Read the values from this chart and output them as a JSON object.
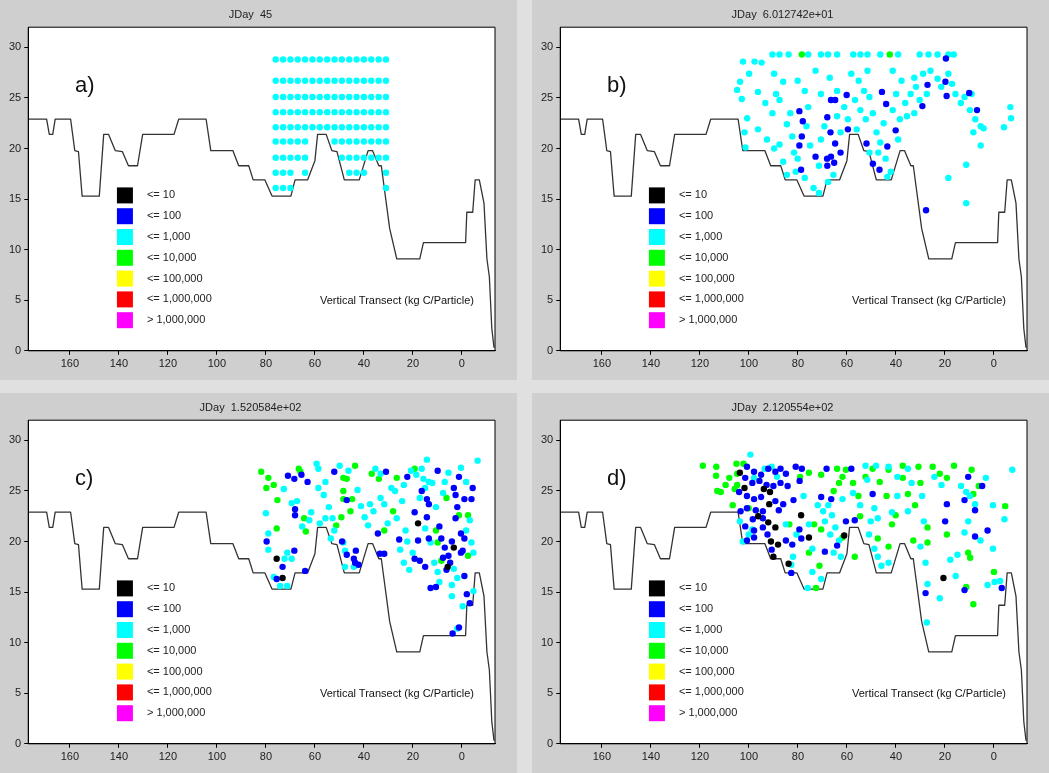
{
  "chart_data": [
    {
      "type": "scatter",
      "title": "JDay  45",
      "annotations": [
        "a)",
        "Vertical Transect (kg C/Particle)"
      ],
      "xlim": [
        177,
        -13.5
      ],
      "xticks": [
        160,
        140,
        120,
        100,
        80,
        60,
        40,
        20,
        0
      ],
      "ylim": [
        0,
        32
      ],
      "yticks": [
        0,
        5,
        10,
        15,
        20,
        25,
        30
      ],
      "legend": "bottom left",
      "marker": "circle",
      "series": [
        {
          "name": "<= 10",
          "color": "#000000"
        },
        {
          "name": "<= 100",
          "color": "#0000ff"
        },
        {
          "name": "<= 1,000",
          "color": "#00ffff",
          "x": [
            76,
            73,
            70,
            67,
            64,
            61,
            58,
            55,
            52,
            49,
            46,
            43,
            40,
            37,
            34,
            31,
            76,
            73,
            70,
            67,
            64,
            61,
            58,
            55,
            52,
            49,
            46,
            43,
            40,
            37,
            34,
            31,
            76,
            73,
            70,
            67,
            64,
            61,
            58,
            55,
            52,
            49,
            46,
            43,
            40,
            37,
            34,
            31,
            76,
            73,
            70,
            67,
            64,
            61,
            58,
            55,
            52,
            49,
            46,
            43,
            40,
            37,
            34,
            31,
            76,
            73,
            70,
            67,
            64,
            61,
            58,
            55,
            52,
            49,
            46,
            43,
            40,
            37,
            34,
            31,
            76,
            73,
            70,
            67,
            64,
            52,
            49,
            46,
            43,
            40,
            37,
            34,
            31,
            76,
            73,
            70,
            67,
            64,
            49,
            46,
            43,
            40,
            37,
            34,
            31,
            76,
            73,
            70,
            64,
            46,
            43,
            40,
            31,
            76,
            73,
            70,
            31
          ],
          "values": [
            28.8,
            28.8,
            28.8,
            28.8,
            28.8,
            28.8,
            28.8,
            28.8,
            28.8,
            28.8,
            28.8,
            28.8,
            28.8,
            28.8,
            28.8,
            28.8,
            26.7,
            26.7,
            26.7,
            26.7,
            26.7,
            26.7,
            26.7,
            26.7,
            26.7,
            26.7,
            26.7,
            26.7,
            26.7,
            26.7,
            26.7,
            26.7,
            25.1,
            25.1,
            25.1,
            25.1,
            25.1,
            25.1,
            25.1,
            25.1,
            25.1,
            25.1,
            25.1,
            25.1,
            25.1,
            25.1,
            25.1,
            25.1,
            23.6,
            23.6,
            23.6,
            23.6,
            23.6,
            23.6,
            23.6,
            23.6,
            23.6,
            23.6,
            23.6,
            23.6,
            23.6,
            23.6,
            23.6,
            23.6,
            22.1,
            22.1,
            22.1,
            22.1,
            22.1,
            22.1,
            22.1,
            22.1,
            22.1,
            22.1,
            22.1,
            22.1,
            22.1,
            22.1,
            22.1,
            22.1,
            20.7,
            20.7,
            20.7,
            20.7,
            20.7,
            20.7,
            20.7,
            20.7,
            20.7,
            20.7,
            20.7,
            20.7,
            20.7,
            19.1,
            19.1,
            19.1,
            19.1,
            19.1,
            19.1,
            19.1,
            19.1,
            19.1,
            19.1,
            19.1,
            19.1,
            17.6,
            17.6,
            17.6,
            17.6,
            17.6,
            17.6,
            17.6,
            17.6,
            16.1,
            16.1,
            16.1,
            16.1
          ]
        },
        {
          "name": "<= 10,000",
          "color": "#00ff00"
        },
        {
          "name": "<= 100,000",
          "color": "#ffff00"
        },
        {
          "name": "<= 1,000,000",
          "color": "#ff0000"
        },
        {
          "name": "> 1,000,000",
          "color": "#ff00ff"
        },
        {
          "type": "line",
          "marker": "none",
          "color": "#333333",
          "x": [
            176.7,
            169.5,
            168.4,
            167,
            166,
            159.7,
            158,
            156.5,
            155,
            148,
            146.2,
            144.2,
            141.5,
            138.6,
            136.1,
            132.4,
            130.3,
            117.5,
            115.6,
            104.4,
            102.5,
            93.5,
            91.1,
            87,
            85.2,
            80.4,
            77.5,
            69.8,
            68.1,
            63,
            60,
            58.9,
            55.4,
            53.1,
            51,
            48,
            41.9,
            38.3,
            36.5,
            33.9,
            32.9,
            29.5,
            26.6,
            17.2,
            15.7,
            -1.5,
            -2,
            -4.4,
            -5.4,
            -7.1,
            -9,
            -10.2,
            -11.2,
            -12.2,
            -13.1
          ],
          "values": [
            22.9,
            22.9,
            21.4,
            21.4,
            22.9,
            22.9,
            19.8,
            19.7,
            15.3,
            15.3,
            21.4,
            21.4,
            19.8,
            19.7,
            18.3,
            18.3,
            21.4,
            21.4,
            22.9,
            22.9,
            19.8,
            19.8,
            18.3,
            18.3,
            16.9,
            16.9,
            15.3,
            15.3,
            16.9,
            16.9,
            18.8,
            21.4,
            21.4,
            19.8,
            19.7,
            16.9,
            16.9,
            19.8,
            19.8,
            18.3,
            18.3,
            12.1,
            9.1,
            9.1,
            10.7,
            10.7,
            13.7,
            13.7,
            16.9,
            16.9,
            14.6,
            9.1,
            7.3,
            2.2,
            0.3
          ]
        }
      ]
    },
    {
      "type": "scatter",
      "title": "JDay  6.012742e+01",
      "annotations": [
        "b)",
        "Vertical Transect (kg C/Particle)"
      ],
      "xlim": [
        177,
        -13.5
      ],
      "xticks": [
        160,
        140,
        120,
        100,
        80,
        60,
        40,
        20,
        0
      ],
      "ylim": [
        0,
        32
      ],
      "yticks": [
        0,
        5,
        10,
        15,
        20,
        25,
        30
      ],
      "legend": "bottom left",
      "marker": "circle",
      "series": [
        {
          "name": "<= 10",
          "color": "#000000"
        },
        {
          "name": "<= 100",
          "color": "#0000ff",
          "x": [
            79.4,
            78,
            78.4,
            79.4,
            78.7,
            66.5,
            64.8,
            68,
            66.7,
            64.8,
            72.8,
            68.1,
            66.5,
            68,
            65.2,
            62.6,
            60.1,
            59.6,
            52,
            49.4,
            46.7,
            45.7,
            44,
            43.5,
            40.1,
            29.2,
            27.1,
            27.7,
            19.6,
            19.8,
            19.3,
            10.1,
            6.9
          ],
          "values": [
            23.7,
            22.7,
            21.2,
            20.3,
            17.9,
            24.8,
            24.8,
            23.1,
            21.6,
            20.5,
            19.2,
            19,
            19.2,
            18.3,
            18.6,
            19.6,
            25.3,
            21.9,
            20.5,
            18.5,
            17.9,
            25.6,
            24.4,
            20.2,
            21.8,
            24.2,
            26.3,
            13.9,
            28.9,
            26.6,
            25.2,
            25.5,
            23.8
          ]
        },
        {
          "name": "<= 1,000",
          "color": "#00ffff",
          "x": [
            90.4,
            87.5,
            83.8,
            75.8,
            70.6,
            67.7,
            64.0,
            57.4,
            54.5,
            51.6,
            46.4,
            39.1,
            30.3,
            26.7,
            23.0,
            18.6,
            16.4,
            102.4,
            97.7,
            94.8,
            104.8,
            103.6,
            99.9,
            102.9,
            100.7,
            101.8,
            101.4,
            96.3,
            93.3,
            89.7,
            88.9,
            90.4,
            87.5,
            86.0,
            84.5,
            96.3,
            92.6,
            89.7,
            87.5,
            86.0,
            83.1,
            82.3,
            81.6,
            80.9,
            84.5,
            80.1,
            77.2,
            75.8,
            76.5,
            75.0,
            80.1,
            77.2,
            73.6,
            71.4,
            70.6,
            72.8,
            70.6,
            67.0,
            64.0,
            69.2,
            64.0,
            61.1,
            62.6,
            59.6,
            71.4,
            65.5,
            67.7,
            58.2,
            55.2,
            53.0,
            56.7,
            54.5,
            50.8,
            52.3,
            56.0,
            49.4,
            47.9,
            46.4,
            44.2,
            42.1,
            43.5,
            47.2,
            50.8,
            45.0,
            41.3,
            39.9,
            37.7,
            41.3,
            51.6,
            36.2,
            34.0,
            31.8,
            30.3,
            27.4,
            32.5,
            28.9,
            25.9,
            23.0,
            21.5,
            18.6,
            17.1,
            15.7,
            13.5,
            12.0,
            9.1,
            38.4,
            35.5,
            32.5,
            39.1,
            9.8,
            7.6,
            8.4,
            5.4,
            4.2,
            5.4,
            11.3,
            18.6,
            11.3,
            -4.1,
            -6.7,
            -7.0
          ],
          "values": [
            29.3,
            29.3,
            29.3,
            29.3,
            29.3,
            29.3,
            29.3,
            29.3,
            29.3,
            29.3,
            29.3,
            29.3,
            29.3,
            29.3,
            29.3,
            29.3,
            29.3,
            28.6,
            28.6,
            28.5,
            25.8,
            26.6,
            27.4,
            24.9,
            23.0,
            21.6,
            20.1,
            25.6,
            24.5,
            27.4,
            25.4,
            23.5,
            24.8,
            26.6,
            22.4,
            21.9,
            20.9,
            20.0,
            20.4,
            18.7,
            23.5,
            21.2,
            19.6,
            17.7,
            17.4,
            26.7,
            25.7,
            24.1,
            22.2,
            20.3,
            19.0,
            17.1,
            16.1,
            15.6,
            20.9,
            27.7,
            25.4,
            27.0,
            25.7,
            22.2,
            23.2,
            24.1,
            21.6,
            22.9,
            18.3,
            17.4,
            16.7,
            27.4,
            26.7,
            25.7,
            24.8,
            23.8,
            25.1,
            22.9,
            21.9,
            23.5,
            21.6,
            20.6,
            19.0,
            17.7,
            17.2,
            19.6,
            19.6,
            22.5,
            23.8,
            25.4,
            26.7,
            27.7,
            27.7,
            24.5,
            25.4,
            26.1,
            24.8,
            25.4,
            27.0,
            27.4,
            27.7,
            26.9,
            26.1,
            27.4,
            26.4,
            25.4,
            24.5,
            25.1,
            25.4,
            22.9,
            23.2,
            23.5,
            20.9,
            23.8,
            22.9,
            21.6,
            22.2,
            22.0,
            20.3,
            18.4,
            17.1,
            14.6,
            22.1,
            24.1,
            23.0
          ]
        },
        {
          "name": "<= 10,000",
          "color": "#00ff00",
          "x": [
            78.4,
            42.5
          ],
          "values": [
            29.3,
            29.3
          ]
        },
        {
          "name": "<= 100,000",
          "color": "#ffff00"
        },
        {
          "name": "<= 1,000,000",
          "color": "#ff0000"
        },
        {
          "name": "> 1,000,000",
          "color": "#ff00ff"
        },
        {
          "type": "line",
          "marker": "none",
          "color": "#333333",
          "x": [
            176.7,
            169.5,
            168.4,
            167,
            166,
            159.7,
            158,
            156.5,
            155,
            148,
            146.2,
            144.2,
            141.5,
            138.6,
            136.1,
            132.4,
            130.3,
            117.5,
            115.6,
            104.4,
            102.5,
            93.5,
            91.1,
            87,
            85.2,
            80.4,
            77.5,
            69.8,
            68.1,
            63,
            60,
            58.9,
            55.4,
            53.1,
            51,
            48,
            41.9,
            38.3,
            36.5,
            33.9,
            32.9,
            29.5,
            26.6,
            17.2,
            15.7,
            -1.5,
            -2,
            -4.4,
            -5.4,
            -7.1,
            -9,
            -10.2,
            -11.2,
            -12.2,
            -13.1
          ],
          "values": [
            22.9,
            22.9,
            21.4,
            21.4,
            22.9,
            22.9,
            19.8,
            19.7,
            15.3,
            15.3,
            21.4,
            21.4,
            19.8,
            19.7,
            18.3,
            18.3,
            21.4,
            21.4,
            22.9,
            22.9,
            19.8,
            19.8,
            18.3,
            18.3,
            16.9,
            16.9,
            15.3,
            15.3,
            16.9,
            16.9,
            18.8,
            21.4,
            21.4,
            19.8,
            19.7,
            16.9,
            16.9,
            19.8,
            19.8,
            18.3,
            18.3,
            12.1,
            9.1,
            9.1,
            10.7,
            10.7,
            13.7,
            13.7,
            16.9,
            16.9,
            14.6,
            9.1,
            7.3,
            2.2,
            0.3
          ]
        }
      ]
    },
    {
      "type": "scatter",
      "title": "JDay  1.520584e+02",
      "annotations": [
        "c)",
        "Vertical Transect (kg C/Particle)"
      ],
      "xlim": [
        177,
        -13.5
      ],
      "xticks": [
        160,
        140,
        120,
        100,
        80,
        60,
        40,
        20,
        0
      ],
      "ylim": [
        0,
        32
      ],
      "yticks": [
        0,
        5,
        10,
        15,
        20,
        25,
        30
      ],
      "legend": "bottom left",
      "marker": "circle",
      "series": [
        {
          "name": "<= 10",
          "color": "#000000",
          "x": [
            75.6,
            73.2,
            17.9,
            3.3,
            5.8
          ],
          "values": [
            18.3,
            16.4,
            21.8,
            19.4,
            17.5
          ]
        },
        {
          "name": "<= 100",
          "color": "#0000ff",
          "x": [
            79.7,
            71.0,
            68.4,
            68.1,
            68.1,
            68.4,
            65.5,
            63.0,
            73.2,
            75.6,
            64.0,
            52.1,
            48.9,
            47.0,
            47.0,
            43.3,
            43.6,
            42.2,
            44.1,
            31.0,
            34.3,
            33.5,
            31.7,
            25.6,
            22.3,
            19.3,
            19.3,
            17.2,
            17.9,
            16.4,
            14.3,
            13.5,
            14.3,
            13.5,
            9.9,
            9.2,
            8.4,
            7.0,
            5.5,
            4.8,
            4.1,
            3.3,
            2.6,
            1.9,
            2.6,
            0.4,
            -0.3,
            -1.0,
            -1.0,
            -4.4,
            -3.9,
            1.2,
            0.4,
            -1.0,
            -2.0,
            -3.2,
            1.2,
            3.8,
            12.8,
            10.6,
            15.0,
            7.7,
            6.3
          ],
          "values": [
            20.0,
            26.5,
            26.2,
            23.2,
            22.6,
            19.1,
            26.6,
            25.9,
            17.5,
            16.3,
            17.1,
            26.9,
            20.0,
            18.7,
            24.1,
            19.1,
            17.9,
            17.7,
            18.3,
            26.9,
            20.8,
            18.8,
            18.8,
            20.2,
            26.4,
            22.9,
            18.3,
            18.1,
            20.1,
            25.0,
            24.2,
            23.7,
            22.4,
            20.3,
            27.0,
            21.5,
            20.3,
            19.4,
            18.6,
            17.9,
            20.0,
            25.3,
            24.6,
            23.4,
            22.3,
            20.8,
            19.1,
            20.3,
            24.2,
            25.3,
            24.2,
            26.4,
            18.9,
            16.6,
            14.8,
            13.9,
            11.5,
            10.9,
            15.4,
            15.5,
            17.5,
            18.4,
            17.2
          ]
        },
        {
          "name": "<= 1,000",
          "color": "#00ffff",
          "x": [
            80.0,
            79.0,
            79.0,
            76.8,
            74.2,
            71.3,
            71.3,
            69.5,
            72.4,
            72.7,
            69.5,
            67.3,
            65.2,
            62.3,
            61.5,
            59.3,
            58.6,
            58.6,
            56.4,
            55.7,
            54.3,
            52.8,
            55.7,
            58.0,
            53.5,
            52.1,
            48.4,
            47.7,
            47.7,
            44.1,
            49.9,
            46.3,
            42.6,
            41.2,
            39.7,
            38.3,
            37.5,
            36.1,
            35.3,
            33.2,
            33.2,
            31.7,
            30.3,
            28.8,
            27.3,
            26.6,
            24.4,
            23.7,
            23.0,
            22.3,
            25.2,
            23.7,
            21.5,
            20.1,
            20.8,
            18.6,
            16.4,
            14.3,
            15.7,
            13.5,
            12.1,
            15.0,
            17.2,
            15.0,
            12.8,
            11.3,
            9.9,
            9.2,
            10.6,
            7.7,
            7.0,
            5.5,
            4.1,
            4.1,
            1.9,
            0.4,
            -1.7,
            -1.7,
            -3.2,
            -3.9,
            -4.7,
            -4.7,
            -6.4,
            -0.3,
            1.9,
            3.3
          ],
          "values": [
            22.8,
            20.8,
            19.2,
            16.5,
            15.6,
            15.6,
            18.9,
            18.3,
            18.3,
            25.2,
            23.8,
            24.0,
            21.5,
            22.1,
            22.9,
            27.7,
            27.2,
            25.3,
            24.6,
            25.9,
            23.4,
            22.3,
            22.3,
            21.8,
            20.3,
            21.1,
            19.9,
            19.1,
            17.5,
            17.5,
            27.5,
            27.0,
            25.1,
            23.5,
            22.4,
            21.6,
            23.7,
            23.0,
            27.2,
            26.7,
            24.3,
            23.7,
            21.8,
            25.3,
            25.0,
            22.3,
            24.0,
            25.6,
            21.1,
            20.0,
            19.2,
            17.9,
            17.2,
            18.9,
            27.0,
            26.6,
            27.2,
            28.1,
            26.2,
            25.9,
            25.8,
            25.3,
            24.3,
            21.3,
            19.9,
            17.9,
            17.0,
            16.0,
            23.4,
            24.8,
            25.9,
            26.8,
            15.7,
            14.6,
            16.4,
            27.3,
            25.9,
            21.1,
            22.1,
            19.9,
            18.9,
            15.1,
            28.0,
            13.6,
            11.4,
            17.3
          ]
        },
        {
          "name": "<= 10,000",
          "color": "#00ff00",
          "x": [
            81.9,
            79.0,
            76.8,
            79.8,
            75.3,
            75.6,
            66.6,
            65.9,
            64.4,
            63.7,
            48.4,
            47.0,
            48.4,
            48.4,
            45.5,
            43.6,
            44.8,
            51.3,
            49.2,
            36.8,
            33.9,
            26.6,
            28.1,
            31.7,
            10.6,
            9.9,
            8.4,
            19.3,
            1.2,
            -2.5,
            -2.5,
            6.3
          ],
          "values": [
            26.9,
            26.3,
            25.6,
            25.3,
            24.1,
            21.3,
            27.2,
            26.9,
            22.3,
            21.0,
            26.3,
            26.2,
            25.0,
            24.2,
            23.0,
            27.5,
            24.2,
            21.6,
            22.4,
            26.7,
            26.2,
            26.3,
            23.0,
            21.1,
            21.1,
            19.9,
            18.1,
            27.2,
            22.6,
            18.6,
            22.6,
            24.3
          ]
        },
        {
          "name": "<= 100,000",
          "color": "#ffff00"
        },
        {
          "name": "<= 1,000,000",
          "color": "#ff0000"
        },
        {
          "name": "> 1,000,000",
          "color": "#ff00ff"
        },
        {
          "type": "line",
          "marker": "none",
          "color": "#333333",
          "x": [
            176.7,
            169.5,
            168.4,
            167,
            166,
            159.7,
            158,
            156.5,
            155,
            148,
            146.2,
            144.2,
            141.5,
            138.6,
            136.1,
            132.4,
            130.3,
            117.5,
            115.6,
            104.4,
            102.5,
            93.5,
            91.1,
            87,
            85.2,
            80.4,
            77.5,
            69.8,
            68.1,
            63,
            60,
            58.9,
            55.4,
            53.1,
            51,
            48,
            41.9,
            38.3,
            36.5,
            33.9,
            32.9,
            29.5,
            26.6,
            17.2,
            15.7,
            -1.5,
            -2,
            -4.4,
            -5.4,
            -7.1,
            -9,
            -10.2,
            -11.2,
            -12.2,
            -13.1
          ],
          "values": [
            22.9,
            22.9,
            21.4,
            21.4,
            22.9,
            22.9,
            19.8,
            19.7,
            15.3,
            15.3,
            21.4,
            21.4,
            19.8,
            19.7,
            18.3,
            18.3,
            21.4,
            21.4,
            22.9,
            22.9,
            19.8,
            19.8,
            18.3,
            18.3,
            16.9,
            16.9,
            15.3,
            15.3,
            16.9,
            16.9,
            18.8,
            21.4,
            21.4,
            19.8,
            19.7,
            16.9,
            16.9,
            19.8,
            19.8,
            18.3,
            18.3,
            12.1,
            9.1,
            9.1,
            10.7,
            10.7,
            13.7,
            13.7,
            16.9,
            16.9,
            14.6,
            9.1,
            7.3,
            2.2,
            0.3
          ]
        }
      ]
    },
    {
      "type": "scatter",
      "title": "JDay  2.120554e+02",
      "annotations": [
        "d)",
        "Vertical Transect (kg C/Particle)"
      ],
      "xlim": [
        177,
        -13.5
      ],
      "xticks": [
        160,
        140,
        120,
        100,
        80,
        60,
        40,
        20,
        0
      ],
      "ylim": [
        0,
        32
      ],
      "yticks": [
        0,
        5,
        10,
        15,
        20,
        25,
        30
      ],
      "legend": "bottom left",
      "marker": "circle",
      "series": [
        {
          "name": "<= 10",
          "color": "#000000",
          "x": [
            103.7,
            101.8,
            93.9,
            91.4,
            91.7,
            96.2,
            92.1,
            89.2,
            91.0,
            88.1,
            90.0,
            83.8,
            78.7,
            75.5,
            61.1,
            20.6
          ],
          "values": [
            26.8,
            25.3,
            25.2,
            24.9,
            23.7,
            22.5,
            21.9,
            21.4,
            20.0,
            19.7,
            18.5,
            17.8,
            22.6,
            20.4,
            20.6,
            16.4
          ]
        },
        {
          "name": "<= 100",
          "color": "#0000ff",
          "x": [
            100.8,
            97.9,
            95.0,
            92.1,
            89.2,
            87.1,
            84.9,
            80.9,
            78.4,
            101.5,
            98.6,
            95.7,
            92.8,
            90.0,
            87.1,
            84.2,
            79.3,
            104.0,
            100.8,
            97.9,
            95.0,
            89.2,
            86.0,
            81.8,
            103.4,
            100.8,
            97.2,
            94.3,
            87.8,
            98.4,
            94.3,
            101.5,
            97.9,
            94.3,
            100.8,
            97.9,
            92.4,
            84.9,
            82.3,
            79.4,
            78.6,
            90.7,
            82.7,
            70.5,
            66.4,
            69.0,
            64.0,
            60.4,
            56.8,
            49.5,
            68.3,
            58.2,
            19.2,
            19.9,
            27.9,
            12.0,
            10.5,
            7.7,
            7.7,
            12.0,
            4.8,
            2.6,
            -3.2
          ],
          "values": [
            27.4,
            26.9,
            26.6,
            27.2,
            26.9,
            27.2,
            26.7,
            27.4,
            27.2,
            26.3,
            25.8,
            26.0,
            25.6,
            25.5,
            25.8,
            25.5,
            26.0,
            24.9,
            24.5,
            24.2,
            24.4,
            24.0,
            23.7,
            24.1,
            23.0,
            23.3,
            23.1,
            23.0,
            23.1,
            22.2,
            22.3,
            21.5,
            21.1,
            21.4,
            20.1,
            20.4,
            20.7,
            20.1,
            19.7,
            21.2,
            20.3,
            19.2,
            16.9,
            24.4,
            24.2,
            19.0,
            19.6,
            22.0,
            22.1,
            24.7,
            27.2,
            27.2,
            23.7,
            22.0,
            14.9,
            24.1,
            26.4,
            23.1,
            20.5,
            15.2,
            25.5,
            21.1,
            15.4
          ]
        },
        {
          "name": "<= 1,000",
          "color": "#00ffff",
          "x": [
            99.4,
            97.9,
            103.7,
            102.5,
            100.1,
            98.6,
            93.6,
            90.7,
            88.5,
            84.9,
            82.0,
            82.7,
            80.6,
            77.7,
            75.5,
            74.1,
            74.1,
            76.0,
            70.5,
            71.9,
            69.7,
            67.6,
            69.0,
            66.8,
            64.7,
            63.2,
            65.4,
            62.5,
            66.1,
            61.8,
            57.5,
            54.6,
            51.7,
            52.4,
            48.8,
            50.3,
            47.4,
            51.0,
            48.8,
            47.4,
            45.9,
            43.0,
            41.6,
            48.1,
            43.0,
            39.4,
            35.1,
            33.6,
            29.3,
            28.6,
            30.0,
            27.9,
            27.1,
            27.4,
            24.3,
            21.4,
            22.1,
            17.8,
            15.6,
            14.9,
            12.0,
            10.5,
            13.4,
            9.8,
            7.7,
            5.5,
            3.3,
            0.4,
            0.4,
            2.6,
            -4.3,
            -7.5,
            -0.3,
            -2.5,
            11.3,
            35.1,
            39.4
          ],
          "values": [
            28.6,
            26.3,
            22.0,
            20.0,
            20.7,
            21.2,
            27.2,
            27.4,
            26.4,
            21.7,
            18.5,
            17.7,
            20.7,
            24.5,
            21.7,
            19.3,
            17.0,
            15.4,
            16.3,
            23.6,
            23.0,
            23.6,
            22.0,
            20.7,
            21.4,
            20.1,
            18.9,
            18.5,
            22.6,
            24.2,
            24.8,
            23.6,
            26.1,
            27.5,
            23.3,
            22.0,
            22.3,
            20.7,
            19.3,
            18.5,
            17.6,
            17.9,
            22.9,
            27.5,
            27.4,
            26.4,
            27.2,
            25.8,
            24.5,
            22.0,
            19.5,
            17.9,
            15.8,
            12.0,
            26.4,
            25.6,
            14.4,
            18.2,
            16.6,
            18.7,
            20.9,
            22.0,
            25.5,
            24.5,
            23.7,
            20.1,
            26.3,
            23.6,
            19.3,
            15.7,
            22.2,
            27.1,
            16.0,
            16.1,
            24.9,
            23.0,
            24.5
          ]
        },
        {
          "name": "<= 10,000",
          "color": "#00ff00",
          "x": [
            118.8,
            113.3,
            113.4,
            112.9,
            111.5,
            109.5,
            108.0,
            105.1,
            104.8,
            105.8,
            106.6,
            104.8,
            102.2,
            100.1,
            83.5,
            79.1,
            75.5,
            75.5,
            73.4,
            71.2,
            72.6,
            70.5,
            70.5,
            65.4,
            64.0,
            63.2,
            61.8,
            60.4,
            57.5,
            55.3,
            54.6,
            61.8,
            56.8,
            52.4,
            49.5,
            46.6,
            43.8,
            43.0,
            41.6,
            47.4,
            43.0,
            40.1,
            37.2,
            37.2,
            35.1,
            32.9,
            32.2,
            30.8,
            30.0,
            27.1,
            27.1,
            25.0,
            22.1,
            19.2,
            16.3,
            19.2,
            10.5,
            9.7,
            11.3,
            8.4,
            9.1,
            8.4,
            6.2,
            0.0,
            -4.6
          ],
          "values": [
            27.5,
            27.4,
            26.5,
            25.0,
            24.9,
            25.6,
            26.3,
            27.7,
            26.7,
            25.2,
            23.6,
            25.6,
            27.7,
            23.3,
            21.7,
            26.4,
            26.8,
            18.9,
            21.7,
            17.6,
            15.4,
            21.2,
            26.6,
            25.0,
            27.2,
            25.8,
            26.4,
            27.1,
            25.8,
            24.5,
            22.5,
            20.4,
            18.5,
            26.4,
            27.2,
            25.9,
            24.5,
            27.1,
            21.7,
            20.3,
            19.5,
            22.6,
            27.5,
            26.3,
            24.7,
            20.1,
            23.6,
            27.4,
            25.8,
            21.4,
            19.9,
            27.4,
            26.7,
            26.3,
            27.5,
            20.7,
            18.9,
            18.4,
            15.5,
            13.8,
            27.1,
            24.7,
            25.5,
            17.0,
            23.5
          ]
        },
        {
          "name": "<= 100,000",
          "color": "#ffff00"
        },
        {
          "name": "<= 1,000,000",
          "color": "#ff0000"
        },
        {
          "name": "> 1,000,000",
          "color": "#ff00ff"
        },
        {
          "type": "line",
          "marker": "none",
          "color": "#333333",
          "x": [
            176.7,
            169.5,
            168.4,
            167,
            166,
            159.7,
            158,
            156.5,
            155,
            148,
            146.2,
            144.2,
            141.5,
            138.6,
            136.1,
            132.4,
            130.3,
            117.5,
            115.6,
            104.4,
            102.5,
            93.5,
            91.1,
            87,
            85.2,
            80.4,
            77.5,
            69.8,
            68.1,
            63,
            60,
            58.9,
            55.4,
            53.1,
            51,
            48,
            41.9,
            38.3,
            36.5,
            33.9,
            32.9,
            29.5,
            26.6,
            17.2,
            15.7,
            -1.5,
            -2,
            -4.4,
            -5.4,
            -7.1,
            -9,
            -10.2,
            -11.2,
            -12.2,
            -13.1
          ],
          "values": [
            22.9,
            22.9,
            21.4,
            21.4,
            22.9,
            22.9,
            19.8,
            19.7,
            15.3,
            15.3,
            21.4,
            21.4,
            19.8,
            19.7,
            18.3,
            18.3,
            21.4,
            21.4,
            22.9,
            22.9,
            19.8,
            19.8,
            18.3,
            18.3,
            16.9,
            16.9,
            15.3,
            15.3,
            16.9,
            16.9,
            18.8,
            21.4,
            21.4,
            19.8,
            19.7,
            16.9,
            16.9,
            19.8,
            19.8,
            18.3,
            18.3,
            12.1,
            9.1,
            9.1,
            10.7,
            10.7,
            13.7,
            13.7,
            16.9,
            16.9,
            14.6,
            9.1,
            7.3,
            2.2,
            0.3
          ]
        }
      ]
    }
  ]
}
